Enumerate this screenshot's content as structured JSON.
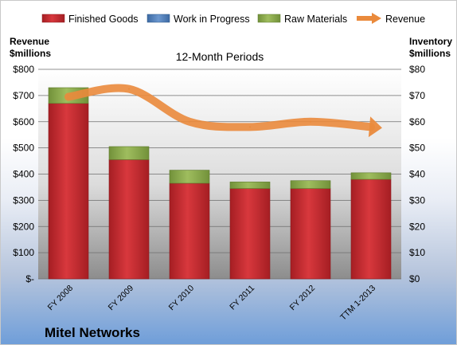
{
  "chart_data": {
    "type": "bar",
    "subtitle": "12-Month Periods",
    "company": "Mitel Networks",
    "categories": [
      "FY 2008",
      "FY 2009",
      "FY 2010",
      "FY 2011",
      "FY 2012",
      "TTM 1-2013"
    ],
    "left_axis": {
      "label_line1": "Revenue",
      "label_line2": "$millions",
      "ticks": [
        "$-",
        "$100",
        "$200",
        "$300",
        "$400",
        "$500",
        "$600",
        "$700",
        "$800"
      ],
      "ylim": [
        0,
        800
      ]
    },
    "right_axis": {
      "label_line1": "Inventory",
      "label_line2": "$millions",
      "ticks": [
        "$0",
        "$10",
        "$20",
        "$30",
        "$40",
        "$50",
        "$60",
        "$70",
        "$80"
      ],
      "ylim": [
        0,
        80
      ]
    },
    "grid": true,
    "legend_position": "top",
    "series": [
      {
        "name": "Finished Goods",
        "kind": "stacked-bar",
        "axis": "right",
        "color": "#c0282d",
        "values": [
          67,
          45.5,
          36.5,
          34.5,
          34.5,
          38
        ]
      },
      {
        "name": "Work in Progress",
        "kind": "stacked-bar",
        "axis": "right",
        "color": "#4f81bd",
        "values": [
          0,
          0,
          0,
          0,
          0,
          0
        ]
      },
      {
        "name": "Raw Materials",
        "kind": "stacked-bar",
        "axis": "right",
        "color": "#8bab4c",
        "values": [
          6,
          5,
          5,
          2.5,
          3,
          2.5
        ]
      },
      {
        "name": "Revenue",
        "kind": "line",
        "axis": "left",
        "color": "#ea8a3c",
        "values": [
          695,
          725,
          600,
          580,
          600,
          580
        ]
      }
    ]
  }
}
